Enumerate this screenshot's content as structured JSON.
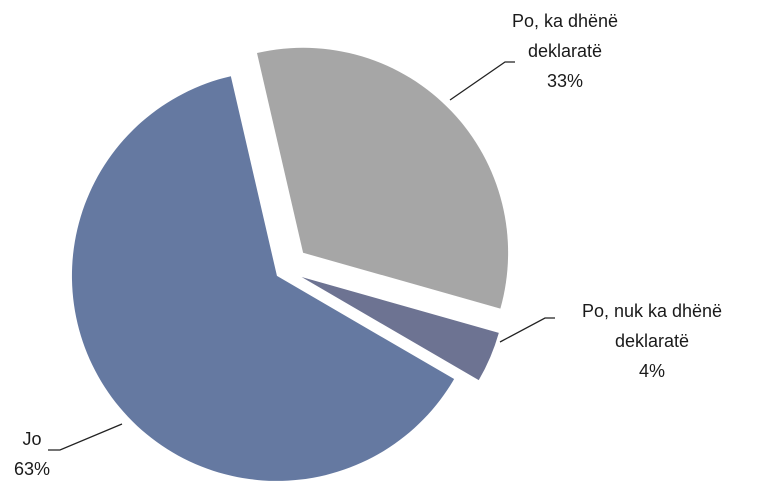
{
  "chart_data": {
    "type": "pie",
    "categories": [
      "Po, ka dhënë deklaratë",
      "Po, nuk ka dhënë deklaratë",
      "Jo"
    ],
    "values": [
      33,
      4,
      63
    ],
    "value_labels": [
      "33%",
      "4%",
      "63%"
    ],
    "colors": [
      "#a6a6a6",
      "#6d7392",
      "#6579a1"
    ]
  }
}
